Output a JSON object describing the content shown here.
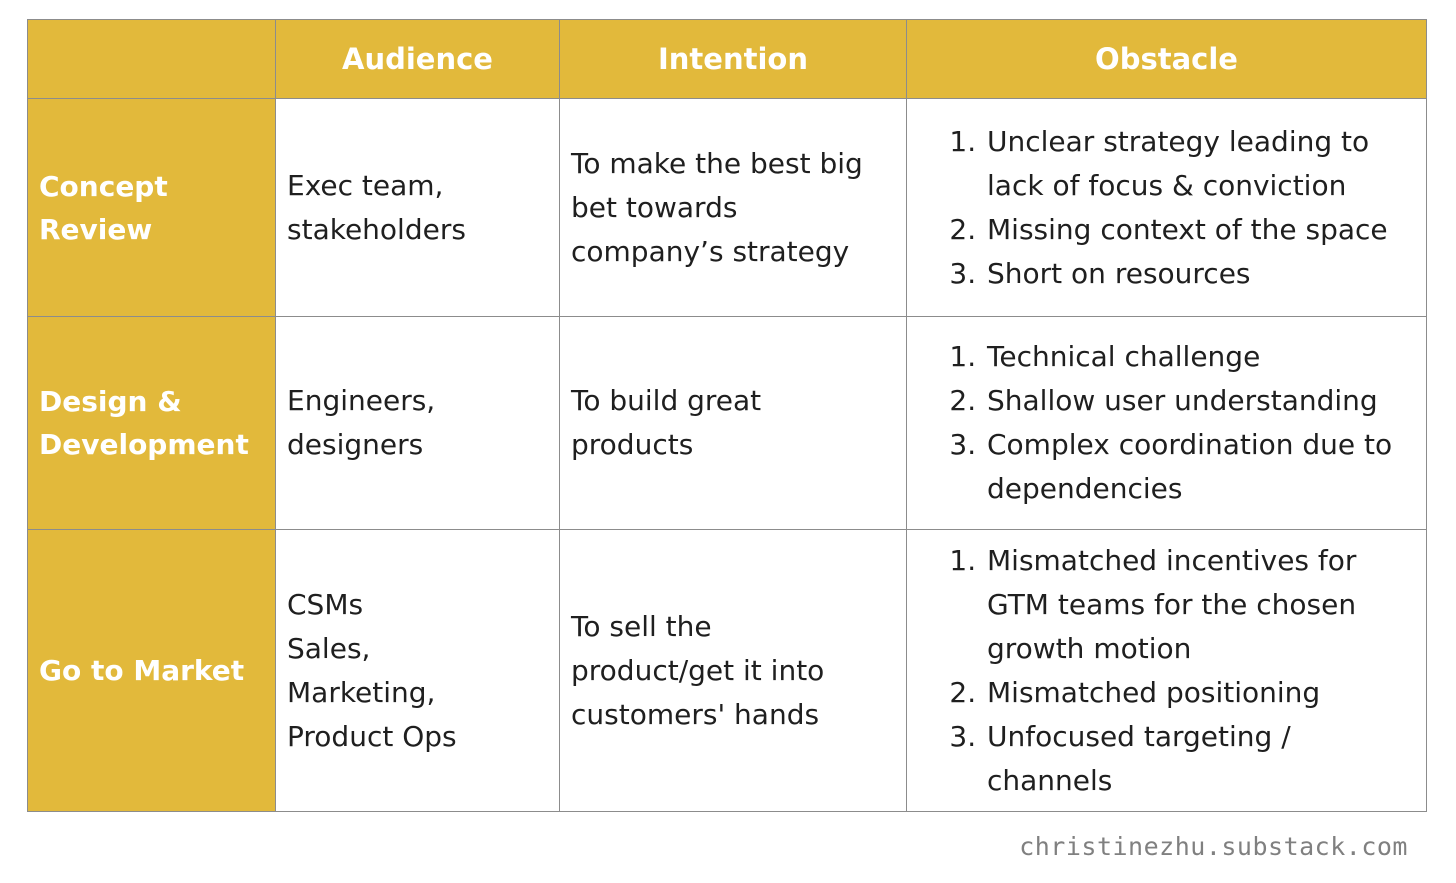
{
  "table": {
    "headers": [
      "",
      "Audience",
      "Intention",
      "Obstacle"
    ],
    "rows": [
      {
        "stage": "Concept\nReview",
        "audience": "Exec team,\nstakeholders",
        "intention": "To make the best big\nbet towards\ncompany’s strategy",
        "obstacles": [
          "Unclear strategy leading to lack of focus & conviction",
          "Missing context of the space",
          "Short on resources"
        ]
      },
      {
        "stage": "Design &\nDevelopment",
        "audience": "Engineers,\ndesigners",
        "intention": "To build great\nproducts",
        "obstacles": [
          "Technical challenge",
          "Shallow user understanding",
          "Complex coordination due to dependencies"
        ]
      },
      {
        "stage": "Go to Market",
        "audience": "CSMs\nSales,\nMarketing,\nProduct Ops",
        "intention": "To sell the\nproduct/get it into\ncustomers' hands",
        "obstacles": [
          "Mismatched incentives for GTM teams for the chosen growth motion",
          "Mismatched positioning",
          "Unfocused targeting / channels"
        ]
      }
    ],
    "colors": {
      "header_bg": "#e2b93b",
      "header_text": "#ffffff",
      "border": "#8c8c8c"
    }
  },
  "footer": {
    "credit": "christinezhu.substack.com"
  }
}
